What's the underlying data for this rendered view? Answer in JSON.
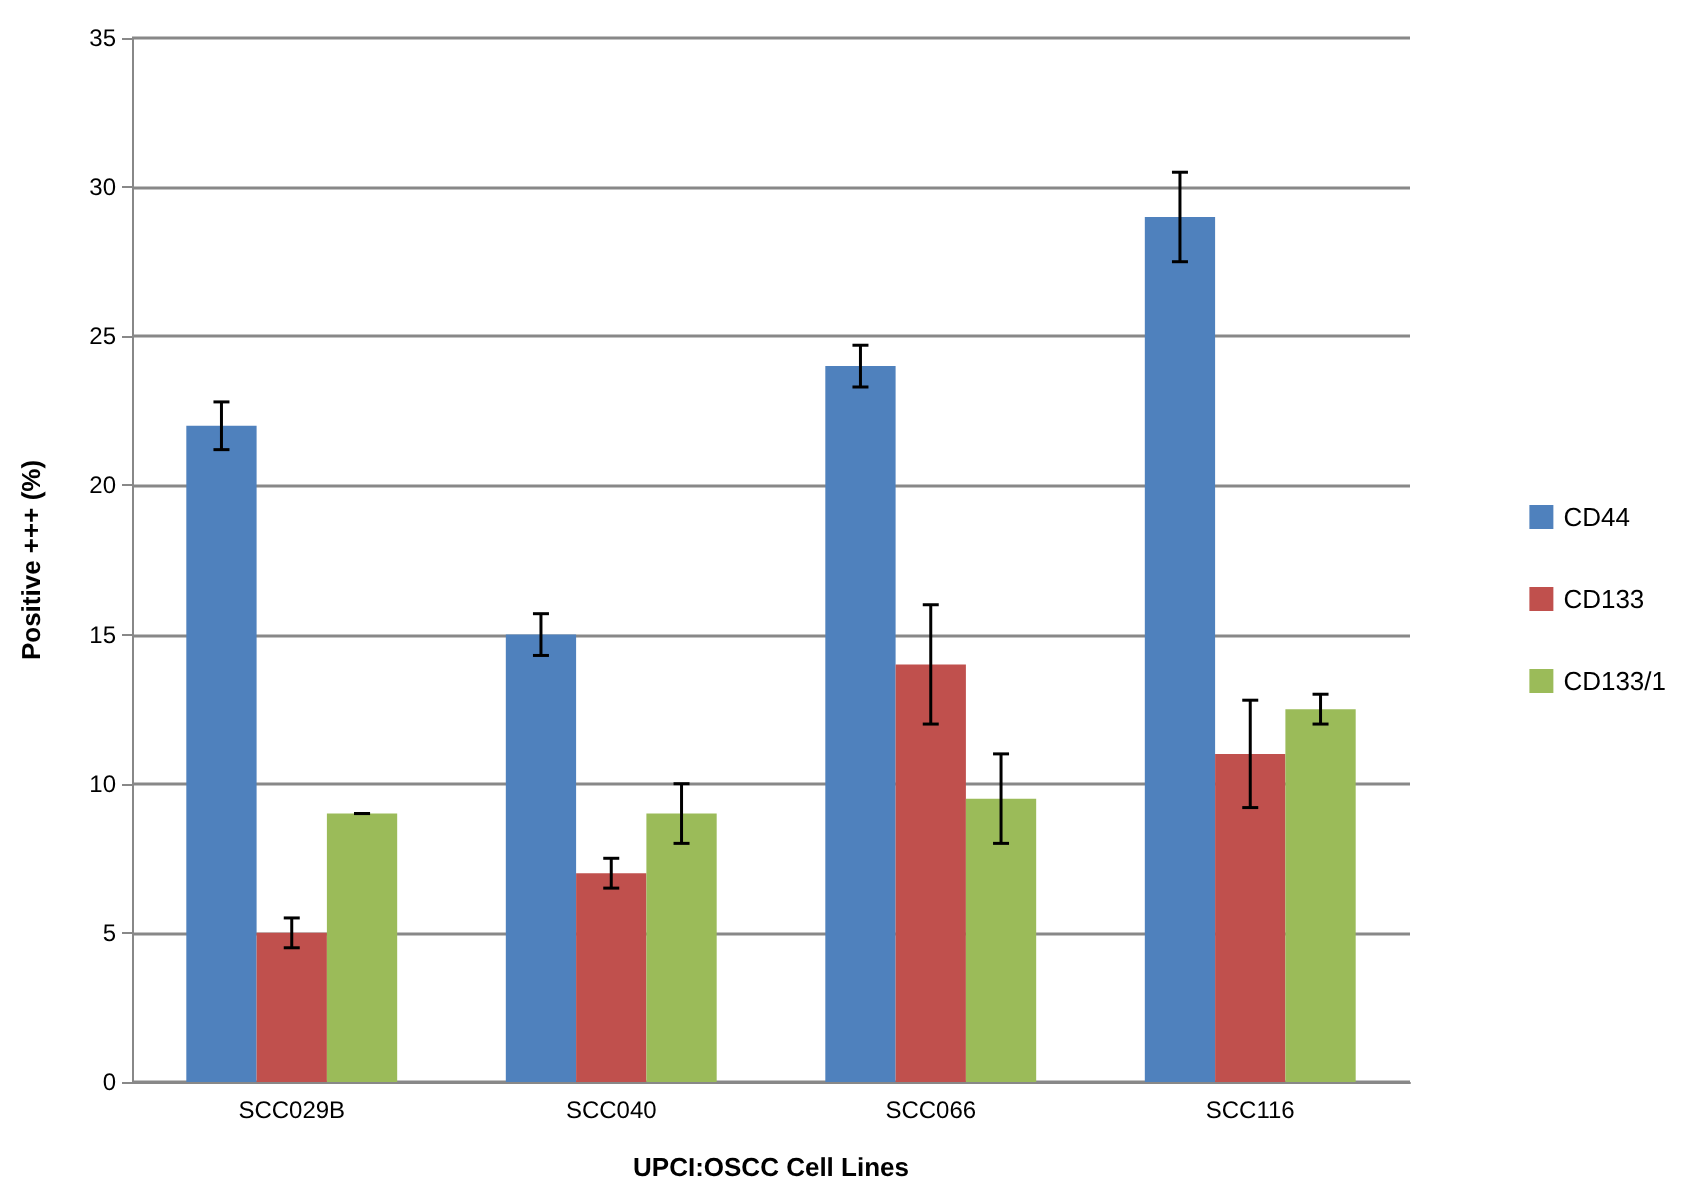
{
  "chart_data": {
    "type": "bar",
    "xlabel": "UPCI:OSCC Cell Lines",
    "ylabel": "Positive +++ (%)",
    "categories": [
      "SCC029B",
      "SCC040",
      "SCC066",
      "SCC116"
    ],
    "series": [
      {
        "name": "CD44",
        "color": "#4f81bd",
        "values": [
          22,
          15,
          24,
          29
        ],
        "errors": [
          0.8,
          0.7,
          0.7,
          1.5
        ]
      },
      {
        "name": "CD133",
        "color": "#c0504d",
        "values": [
          5,
          7,
          14,
          11
        ],
        "errors": [
          0.5,
          0.5,
          2,
          1.8
        ]
      },
      {
        "name": "CD133/1",
        "color": "#9bbb59",
        "values": [
          9,
          9,
          9.5,
          12.5
        ],
        "errors": [
          0,
          1,
          1.5,
          0.5
        ]
      }
    ],
    "ylim": [
      0,
      35
    ],
    "yticks": [
      0,
      5,
      10,
      15,
      20,
      25,
      30,
      35
    ],
    "grid": "y",
    "legend": "right"
  }
}
